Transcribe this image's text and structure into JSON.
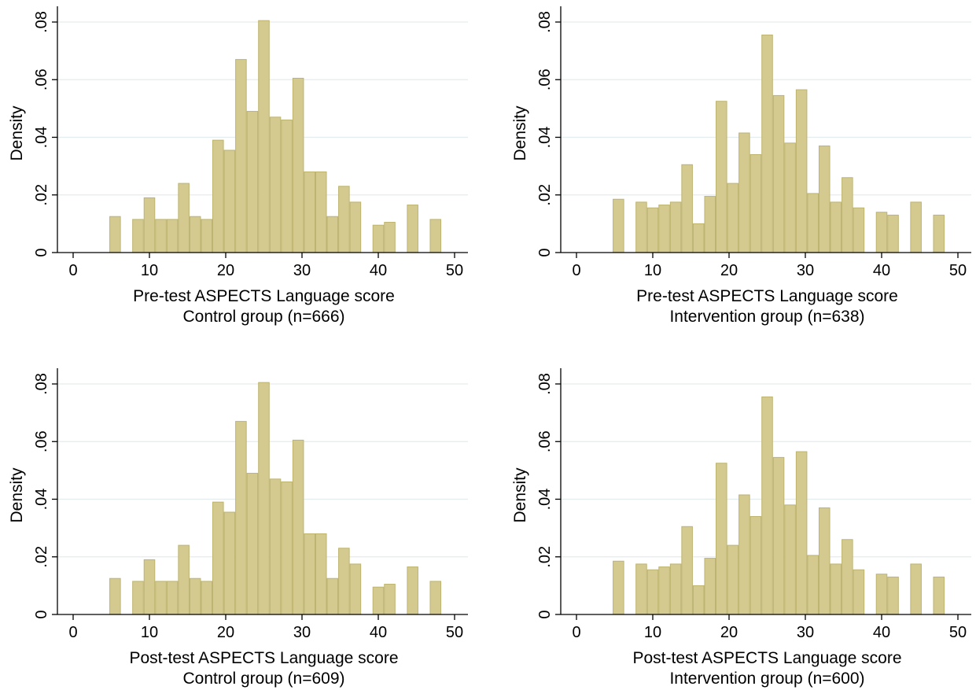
{
  "figure": {
    "bar_fill": "#d4ca8f",
    "bar_stroke": "#bdb36f",
    "grid_color": "#e5ecee",
    "axis_color": "#000000"
  },
  "chart_data": [
    {
      "type": "bar",
      "xlabel": "Pre-test ASPECTS Language score",
      "subtitle": "Control group (n=666)",
      "ylabel": "Density",
      "xlim": [
        -1.5,
        51.5
      ],
      "ylim": [
        0,
        0.085
      ],
      "xticks": [
        "0",
        "10",
        "20",
        "30",
        "40",
        "50"
      ],
      "yticks": [
        "0",
        ".02",
        ".04",
        ".06",
        ".08"
      ],
      "grid": true,
      "bin_width": 1.5,
      "bins": [
        {
          "x": 5.5,
          "density": 0.0125
        },
        {
          "x": 8.5,
          "density": 0.0115
        },
        {
          "x": 10,
          "density": 0.019
        },
        {
          "x": 11.5,
          "density": 0.0115
        },
        {
          "x": 13,
          "density": 0.0115
        },
        {
          "x": 14.5,
          "density": 0.024
        },
        {
          "x": 16,
          "density": 0.0125
        },
        {
          "x": 17.5,
          "density": 0.0115
        },
        {
          "x": 19,
          "density": 0.039
        },
        {
          "x": 20.5,
          "density": 0.0355
        },
        {
          "x": 22,
          "density": 0.067
        },
        {
          "x": 23.5,
          "density": 0.049
        },
        {
          "x": 25,
          "density": 0.0805
        },
        {
          "x": 26.5,
          "density": 0.047
        },
        {
          "x": 28,
          "density": 0.046
        },
        {
          "x": 29.5,
          "density": 0.0605
        },
        {
          "x": 31,
          "density": 0.028
        },
        {
          "x": 32.5,
          "density": 0.028
        },
        {
          "x": 34,
          "density": 0.0125
        },
        {
          "x": 35.5,
          "density": 0.023
        },
        {
          "x": 37,
          "density": 0.0175
        },
        {
          "x": 40,
          "density": 0.0095
        },
        {
          "x": 41.5,
          "density": 0.0105
        },
        {
          "x": 44.5,
          "density": 0.0165
        },
        {
          "x": 47.5,
          "density": 0.0115
        }
      ]
    },
    {
      "type": "bar",
      "xlabel": "Pre-test ASPECTS Language score",
      "subtitle": "Intervention group (n=638)",
      "ylabel": "Density",
      "xlim": [
        -1.5,
        51.5
      ],
      "ylim": [
        0,
        0.085
      ],
      "xticks": [
        "0",
        "10",
        "20",
        "30",
        "40",
        "50"
      ],
      "yticks": [
        "0",
        ".02",
        ".04",
        ".06",
        ".08"
      ],
      "grid": true,
      "bin_width": 1.5,
      "bins": [
        {
          "x": 5.5,
          "density": 0.0185
        },
        {
          "x": 8.5,
          "density": 0.0175
        },
        {
          "x": 10,
          "density": 0.0155
        },
        {
          "x": 11.5,
          "density": 0.0165
        },
        {
          "x": 13,
          "density": 0.0175
        },
        {
          "x": 14.5,
          "density": 0.0305
        },
        {
          "x": 16,
          "density": 0.01
        },
        {
          "x": 17.5,
          "density": 0.0195
        },
        {
          "x": 19,
          "density": 0.0525
        },
        {
          "x": 20.5,
          "density": 0.024
        },
        {
          "x": 22,
          "density": 0.0415
        },
        {
          "x": 23.5,
          "density": 0.034
        },
        {
          "x": 25,
          "density": 0.0755
        },
        {
          "x": 26.5,
          "density": 0.0545
        },
        {
          "x": 28,
          "density": 0.038
        },
        {
          "x": 29.5,
          "density": 0.0565
        },
        {
          "x": 31,
          "density": 0.0205
        },
        {
          "x": 32.5,
          "density": 0.037
        },
        {
          "x": 34,
          "density": 0.0175
        },
        {
          "x": 35.5,
          "density": 0.026
        },
        {
          "x": 37,
          "density": 0.0155
        },
        {
          "x": 40,
          "density": 0.014
        },
        {
          "x": 41.5,
          "density": 0.013
        },
        {
          "x": 44.5,
          "density": 0.0175
        },
        {
          "x": 47.5,
          "density": 0.013
        }
      ]
    },
    {
      "type": "bar",
      "xlabel": "Post-test ASPECTS Language score",
      "subtitle": "Control group (n=609)",
      "ylabel": "Density",
      "xlim": [
        -1.5,
        51.5
      ],
      "ylim": [
        0,
        0.085
      ],
      "xticks": [
        "0",
        "10",
        "20",
        "30",
        "40",
        "50"
      ],
      "yticks": [
        "0",
        ".02",
        ".04",
        ".06",
        ".08"
      ],
      "grid": true,
      "bin_width": 1.5,
      "bins": [
        {
          "x": 5.5,
          "density": 0.0125
        },
        {
          "x": 8.5,
          "density": 0.0115
        },
        {
          "x": 10,
          "density": 0.019
        },
        {
          "x": 11.5,
          "density": 0.0115
        },
        {
          "x": 13,
          "density": 0.0115
        },
        {
          "x": 14.5,
          "density": 0.024
        },
        {
          "x": 16,
          "density": 0.0125
        },
        {
          "x": 17.5,
          "density": 0.0115
        },
        {
          "x": 19,
          "density": 0.039
        },
        {
          "x": 20.5,
          "density": 0.0355
        },
        {
          "x": 22,
          "density": 0.067
        },
        {
          "x": 23.5,
          "density": 0.049
        },
        {
          "x": 25,
          "density": 0.0805
        },
        {
          "x": 26.5,
          "density": 0.047
        },
        {
          "x": 28,
          "density": 0.046
        },
        {
          "x": 29.5,
          "density": 0.0605
        },
        {
          "x": 31,
          "density": 0.028
        },
        {
          "x": 32.5,
          "density": 0.028
        },
        {
          "x": 34,
          "density": 0.0125
        },
        {
          "x": 35.5,
          "density": 0.023
        },
        {
          "x": 37,
          "density": 0.0175
        },
        {
          "x": 40,
          "density": 0.0095
        },
        {
          "x": 41.5,
          "density": 0.0105
        },
        {
          "x": 44.5,
          "density": 0.0165
        },
        {
          "x": 47.5,
          "density": 0.0115
        }
      ]
    },
    {
      "type": "bar",
      "xlabel": "Post-test ASPECTS Language score",
      "subtitle": "Intervention group (n=600)",
      "ylabel": "Density",
      "xlim": [
        -1.5,
        51.5
      ],
      "ylim": [
        0,
        0.085
      ],
      "xticks": [
        "0",
        "10",
        "20",
        "30",
        "40",
        "50"
      ],
      "yticks": [
        "0",
        ".02",
        ".04",
        ".06",
        ".08"
      ],
      "grid": true,
      "bin_width": 1.5,
      "bins": [
        {
          "x": 5.5,
          "density": 0.0185
        },
        {
          "x": 8.5,
          "density": 0.0175
        },
        {
          "x": 10,
          "density": 0.0155
        },
        {
          "x": 11.5,
          "density": 0.0165
        },
        {
          "x": 13,
          "density": 0.0175
        },
        {
          "x": 14.5,
          "density": 0.0305
        },
        {
          "x": 16,
          "density": 0.01
        },
        {
          "x": 17.5,
          "density": 0.0195
        },
        {
          "x": 19,
          "density": 0.0525
        },
        {
          "x": 20.5,
          "density": 0.024
        },
        {
          "x": 22,
          "density": 0.0415
        },
        {
          "x": 23.5,
          "density": 0.034
        },
        {
          "x": 25,
          "density": 0.0755
        },
        {
          "x": 26.5,
          "density": 0.0545
        },
        {
          "x": 28,
          "density": 0.038
        },
        {
          "x": 29.5,
          "density": 0.0565
        },
        {
          "x": 31,
          "density": 0.0205
        },
        {
          "x": 32.5,
          "density": 0.037
        },
        {
          "x": 34,
          "density": 0.0175
        },
        {
          "x": 35.5,
          "density": 0.026
        },
        {
          "x": 37,
          "density": 0.0155
        },
        {
          "x": 40,
          "density": 0.014
        },
        {
          "x": 41.5,
          "density": 0.013
        },
        {
          "x": 44.5,
          "density": 0.0175
        },
        {
          "x": 47.5,
          "density": 0.013
        }
      ]
    }
  ]
}
